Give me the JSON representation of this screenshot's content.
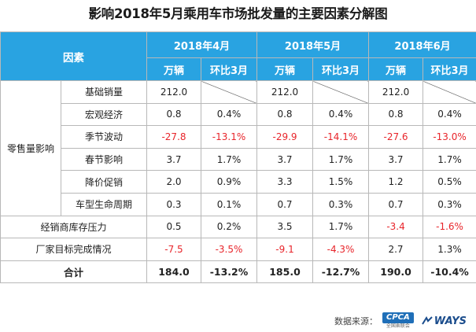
{
  "title": "影响2018年5月乘用车市场批发量的主要因素分解图",
  "header": {
    "factor_label": "因素",
    "months": [
      "2018年4月",
      "2018年5月",
      "2018年6月"
    ],
    "unit_label": "万辆",
    "ratio_label": "环比3月"
  },
  "groups": {
    "retail": "零售量影响"
  },
  "rows": [
    {
      "name": "基础销量",
      "apr_v": "212.0",
      "apr_r": "",
      "may_v": "212.0",
      "may_r": "",
      "jun_v": "212.0",
      "jun_r": ""
    },
    {
      "name": "宏观经济",
      "apr_v": "0.8",
      "apr_r": "0.4%",
      "may_v": "0.8",
      "may_r": "0.4%",
      "jun_v": "0.8",
      "jun_r": "0.4%"
    },
    {
      "name": "季节波动",
      "apr_v": "-27.8",
      "apr_r": "-13.1%",
      "may_v": "-29.9",
      "may_r": "-14.1%",
      "jun_v": "-27.6",
      "jun_r": "-13.0%"
    },
    {
      "name": "春节影响",
      "apr_v": "3.7",
      "apr_r": "1.7%",
      "may_v": "3.7",
      "may_r": "1.7%",
      "jun_v": "3.7",
      "jun_r": "1.7%"
    },
    {
      "name": "降价促销",
      "apr_v": "2.0",
      "apr_r": "0.9%",
      "may_v": "3.3",
      "may_r": "1.5%",
      "jun_v": "1.2",
      "jun_r": "0.5%"
    },
    {
      "name": "车型生命周期",
      "apr_v": "0.3",
      "apr_r": "0.1%",
      "may_v": "0.7",
      "may_r": "0.3%",
      "jun_v": "0.7",
      "jun_r": "0.3%"
    },
    {
      "name": "经销商库存压力",
      "apr_v": "0.5",
      "apr_r": "0.2%",
      "may_v": "3.5",
      "may_r": "1.7%",
      "jun_v": "-3.4",
      "jun_r": "-1.6%"
    },
    {
      "name": "厂家目标完成情况",
      "apr_v": "-7.5",
      "apr_r": "-3.5%",
      "may_v": "-9.1",
      "may_r": "-4.3%",
      "jun_v": "2.7",
      "jun_r": "1.3%"
    },
    {
      "name": "合计",
      "apr_v": "184.0",
      "apr_r": "-13.2%",
      "may_v": "185.0",
      "may_r": "-12.7%",
      "jun_v": "190.0",
      "jun_r": "-10.4%"
    }
  ],
  "footer": {
    "source_label": "数据来源：",
    "cpca_logo": "CPCA",
    "cpca_sub": "全国乘联会",
    "ways_logo": "WAYS"
  },
  "colors": {
    "header_bg": "#29a3e1",
    "negative": "#e8252b"
  }
}
